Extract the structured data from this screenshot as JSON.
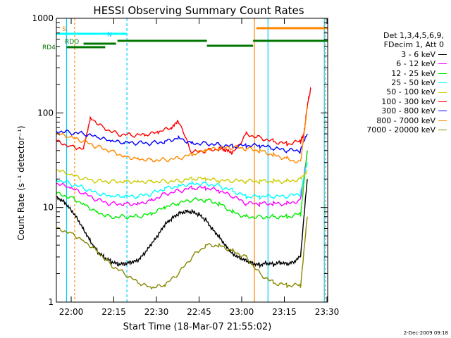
{
  "chart_data": {
    "type": "line",
    "title": "HESSI Observing Summary Count Rates",
    "xlabel": "Start Time (18-Mar-07 21:55:02)",
    "ylabel": "Count Rate (s⁻¹ detector⁻¹)",
    "y_scale": "log",
    "ylim": [
      1,
      1000
    ],
    "xlim_minutes": [
      -3,
      37
    ],
    "x_ticks": [
      "22:00",
      "22:15",
      "22:30",
      "22:45",
      "23:00",
      "23:15",
      "23:30"
    ],
    "y_ticks": [
      "1",
      "10",
      "100",
      "1000"
    ],
    "legend": {
      "header": [
        "Det 1,3,4,5,6,9,",
        "FDecim 1, Att 0"
      ],
      "position": "right"
    },
    "series": [
      {
        "name": "3 - 6 keV",
        "color": "#000000",
        "x": [
          0,
          2,
          4,
          6,
          8,
          10,
          12,
          14,
          16,
          18,
          20,
          22,
          24,
          26,
          28,
          30,
          32,
          34,
          36,
          38,
          40,
          42,
          44,
          46,
          48,
          50,
          52,
          54,
          56,
          58,
          60,
          62,
          64,
          66,
          68,
          70,
          72,
          74
        ],
        "y": [
          13,
          12,
          10,
          8,
          6,
          4.5,
          3.5,
          3,
          2.7,
          2.5,
          2.5,
          2.6,
          2.7,
          3.2,
          4,
          5,
          6.5,
          7.5,
          8.5,
          9,
          9,
          8.5,
          7.5,
          6,
          5,
          4,
          3.3,
          3,
          2.8,
          2.6,
          2.5,
          2.6,
          2.5,
          2.6,
          2.5,
          2.6,
          3,
          20
        ]
      },
      {
        "name": "6 - 12 keV",
        "color": "#ff00ff",
        "x": [
          0,
          4,
          8,
          12,
          16,
          20,
          24,
          28,
          32,
          36,
          40,
          44,
          48,
          52,
          56,
          60,
          64,
          68,
          72,
          74
        ],
        "y": [
          18,
          16,
          14,
          12,
          11,
          11,
          11,
          12,
          14,
          15,
          16,
          16,
          15,
          13,
          11,
          11,
          11,
          11,
          12,
          40
        ]
      },
      {
        "name": "12 - 25 keV",
        "color": "#00ee00",
        "x": [
          0,
          4,
          8,
          12,
          16,
          20,
          24,
          28,
          32,
          36,
          40,
          44,
          48,
          52,
          56,
          60,
          64,
          68,
          72,
          74
        ],
        "y": [
          14,
          13,
          11,
          9,
          8,
          8,
          8,
          8.5,
          10,
          11,
          12,
          12,
          11,
          9,
          8,
          8,
          8,
          8,
          8.5,
          40
        ]
      },
      {
        "name": "25 - 50 keV",
        "color": "#00ffff",
        "x": [
          0,
          4,
          8,
          12,
          16,
          20,
          24,
          28,
          32,
          36,
          40,
          44,
          48,
          52,
          56,
          60,
          64,
          68,
          72,
          74
        ],
        "y": [
          20,
          18,
          16,
          14,
          13,
          13,
          13,
          14,
          16,
          17,
          18,
          18,
          17,
          15,
          13,
          13,
          13,
          13,
          14,
          30
        ]
      },
      {
        "name": "50 - 100 keV",
        "color": "#cccc00",
        "x": [
          0,
          4,
          8,
          12,
          16,
          20,
          24,
          28,
          32,
          36,
          40,
          44,
          48,
          52,
          56,
          60,
          64,
          68,
          72,
          74
        ],
        "y": [
          25,
          22,
          20,
          19,
          19,
          19,
          19,
          19,
          19,
          19,
          20,
          20,
          19,
          19,
          19,
          19,
          19,
          19,
          20,
          25
        ]
      },
      {
        "name": "100 - 300 keV",
        "color": "#ff0000",
        "x": [
          0,
          4,
          8,
          10,
          14,
          18,
          22,
          26,
          30,
          34,
          36,
          40,
          44,
          48,
          50,
          52,
          56,
          60,
          64,
          68,
          72,
          73,
          74,
          75
        ],
        "y": [
          50,
          45,
          42,
          90,
          70,
          60,
          58,
          58,
          62,
          70,
          80,
          38,
          40,
          42,
          40,
          38,
          60,
          55,
          50,
          47,
          50,
          60,
          120,
          180
        ]
      },
      {
        "name": "300 - 800 keV",
        "color": "#0000ff",
        "x": [
          0,
          4,
          8,
          12,
          16,
          20,
          24,
          28,
          32,
          36,
          40,
          44,
          48,
          52,
          56,
          60,
          64,
          68,
          72,
          74
        ],
        "y": [
          65,
          62,
          60,
          55,
          50,
          48,
          48,
          48,
          50,
          55,
          48,
          48,
          46,
          44,
          45,
          45,
          42,
          40,
          40,
          60
        ]
      },
      {
        "name": "800 - 7000 keV",
        "color": "#ff8800",
        "x": [
          0,
          4,
          8,
          12,
          16,
          20,
          24,
          28,
          32,
          36,
          40,
          44,
          48,
          52,
          56,
          60,
          64,
          68,
          72,
          74
        ],
        "y": [
          60,
          55,
          50,
          44,
          40,
          35,
          33,
          32,
          32,
          33,
          36,
          40,
          42,
          43,
          42,
          40,
          36,
          33,
          30,
          120
        ]
      },
      {
        "name": "7000 - 20000 keV",
        "color": "#888800",
        "x": [
          0,
          4,
          8,
          12,
          16,
          20,
          24,
          28,
          32,
          36,
          40,
          44,
          48,
          52,
          56,
          60,
          64,
          68,
          72,
          74
        ],
        "y": [
          6,
          5.5,
          4.5,
          3.5,
          2.5,
          2,
          1.6,
          1.4,
          1.5,
          2,
          3,
          4,
          4,
          3.5,
          3,
          2,
          1.6,
          1.5,
          1.5,
          8
        ]
      }
    ],
    "flags": [
      {
        "name": "S",
        "color": "#ff8800"
      },
      {
        "name": "N",
        "color": "#00ccff"
      },
      {
        "name": "RDO",
        "color": "#007700"
      },
      {
        "name": "RD4",
        "color": "#007700"
      }
    ]
  },
  "timestamp": "2-Dec-2009 09:18"
}
